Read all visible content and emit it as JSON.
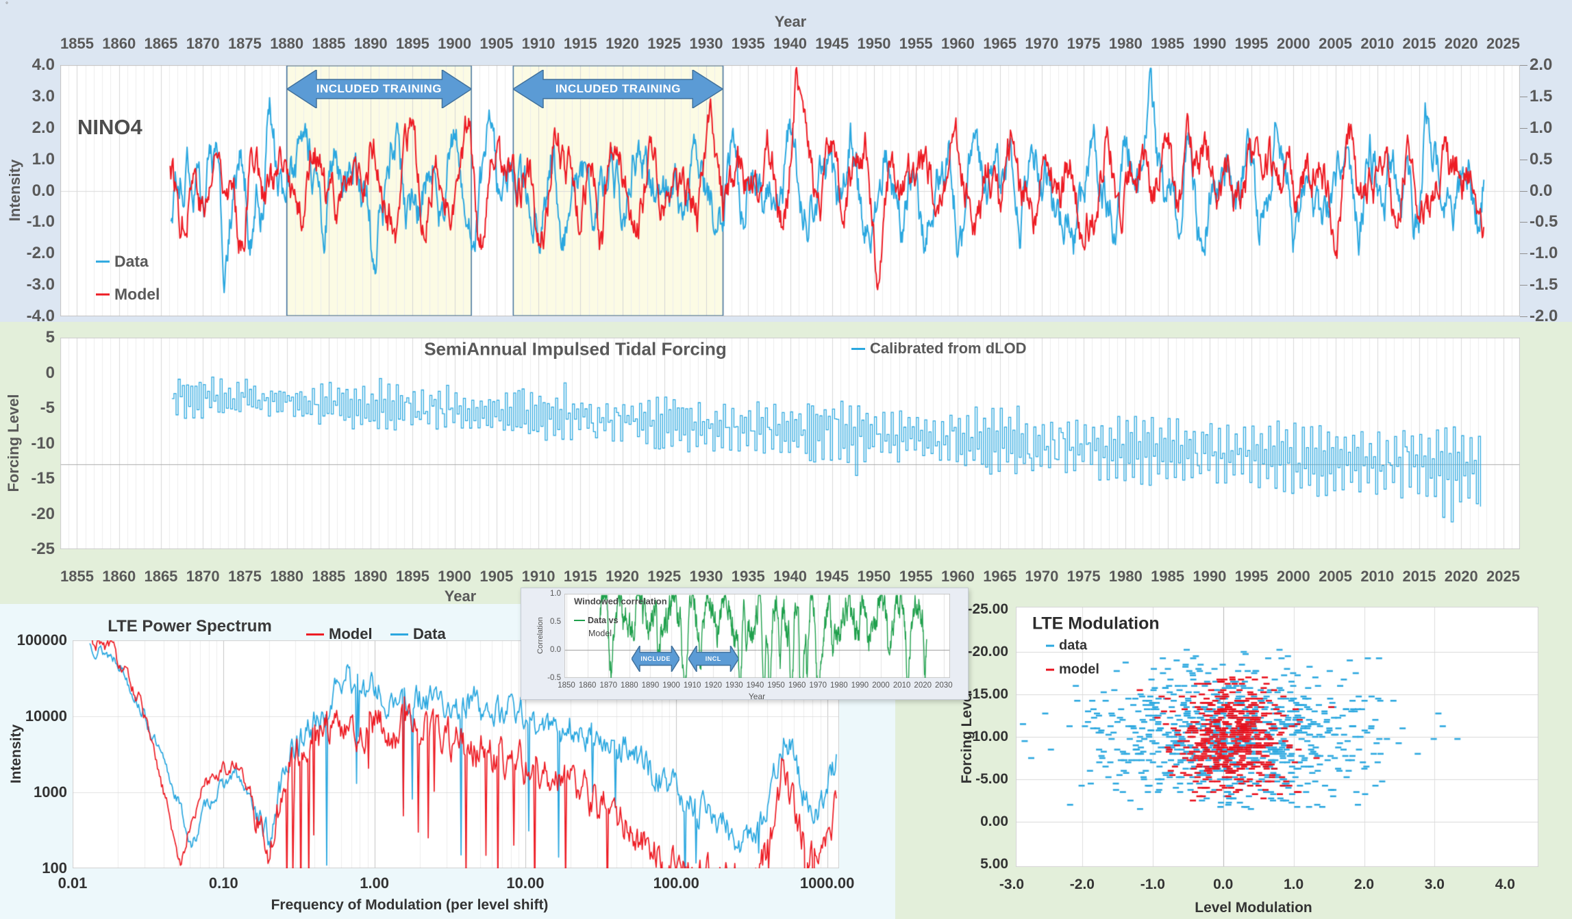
{
  "texts": {
    "corner_mark": "°"
  },
  "colors": {
    "data_blue": "#2AA7DF",
    "model_red": "#ED1C24",
    "corr_green": "#1FA04C",
    "banner_fill": "#5B9BD5",
    "banner_border": "#41719C",
    "training_fill": "#FCFBE4",
    "training_border": "#41719C",
    "panel_top_bg": "#DCE6F2",
    "panel_mid_bg": "#E3EFDA",
    "panel_spectrum_bg": "#EDF8FB",
    "panel_modulation_bg": "#E3EFDA",
    "inset_bg": "#E9EDF4",
    "axis_text": "#595959"
  },
  "chart_data": [
    {
      "id": "nino4",
      "type": "line",
      "panel_label": "NINO4",
      "x_axis": {
        "title": "Year",
        "position": "top",
        "range": [
          1853,
          2027
        ],
        "ticks": [
          1855,
          1860,
          1865,
          1870,
          1875,
          1880,
          1885,
          1890,
          1895,
          1900,
          1905,
          1910,
          1915,
          1920,
          1925,
          1930,
          1935,
          1940,
          1945,
          1950,
          1955,
          1960,
          1965,
          1970,
          1975,
          1980,
          1985,
          1990,
          1995,
          2000,
          2005,
          2010,
          2015,
          2020,
          2025
        ]
      },
      "y_axis_left": {
        "title": "Intensity",
        "range": [
          -4,
          4
        ],
        "tick_values": [
          4,
          3,
          2,
          1,
          0,
          -1,
          -2,
          -3,
          -4
        ],
        "tick_labels": [
          "4.0",
          "3.0",
          "2.0",
          "1.0",
          "0.0",
          "-1.0",
          "-2.0",
          "-3.0",
          "-4.0"
        ]
      },
      "y_axis_right": {
        "range": [
          -2,
          2
        ],
        "tick_values": [
          2,
          1.5,
          1,
          0.5,
          0,
          -0.5,
          -1,
          -1.5,
          -2
        ],
        "tick_labels": [
          "2.0",
          "1.5",
          "1.0",
          "0.5",
          "0.0",
          "-0.5",
          "-1.0",
          "-1.5",
          "-2.0"
        ]
      },
      "training_regions": [
        {
          "label": "INCLUDED TRAINING",
          "start_year": 1880,
          "end_year": 1902
        },
        {
          "label": "INCLUDED TRAINING",
          "start_year": 1907,
          "end_year": 1932
        }
      ],
      "series": [
        {
          "name": "Data",
          "color": "#2AA7DF",
          "axis": "left",
          "reconstruction": true,
          "seed": 20,
          "vol": 1.05,
          "start": 1866.2,
          "end": 2022.7,
          "events": [
            [
              1877.9,
              2.4,
              0.45
            ],
            [
              1983.0,
              2.5,
              0.4
            ],
            [
              2015.8,
              1.7,
              0.45
            ],
            [
              1997.9,
              1.5,
              0.4
            ],
            [
              1872.6,
              -1.7,
              0.4
            ],
            [
              1875.6,
              -2.1,
              0.35
            ],
            [
              1890.3,
              -1.4,
              0.4
            ],
            [
              1910.6,
              -1.5,
              0.5
            ],
            [
              1955.8,
              -1.4,
              0.5
            ],
            [
              1973.5,
              -1.5,
              0.5
            ],
            [
              1988.7,
              -1.3,
              0.4
            ],
            [
              1999.9,
              -1.2,
              0.5
            ]
          ]
        },
        {
          "name": "Model",
          "color": "#ED1C24",
          "axis": "right",
          "reconstruction": true,
          "seed": 77,
          "vol": 0.92,
          "start": 1866.1,
          "end": 2022.7,
          "events": [
            [
              1940.8,
              3.0,
              0.7
            ],
            [
              1987.2,
              2.9,
              0.45
            ],
            [
              1997.6,
              1.6,
              0.5
            ],
            [
              2019.4,
              1.5,
              0.45
            ],
            [
              1893.2,
              -1.2,
              0.5
            ],
            [
              1917.4,
              -1.1,
              0.5
            ],
            [
              1950.3,
              -1.4,
              0.5
            ],
            [
              1974.8,
              -1.1,
              0.5
            ],
            [
              2007.9,
              -0.9,
              0.4
            ]
          ]
        }
      ]
    },
    {
      "id": "tidal",
      "type": "step-line",
      "title": "SemiAnnual Impulsed Tidal Forcing",
      "x_axis": {
        "title": "Year",
        "position": "bottom",
        "range": [
          1853,
          2027
        ],
        "ticks": [
          1855,
          1860,
          1865,
          1870,
          1875,
          1880,
          1885,
          1890,
          1895,
          1900,
          1905,
          1910,
          1915,
          1920,
          1925,
          1930,
          1935,
          1940,
          1945,
          1950,
          1955,
          1960,
          1965,
          1970,
          1975,
          1980,
          1985,
          1990,
          1995,
          2000,
          2005,
          2010,
          2015,
          2020,
          2025
        ]
      },
      "y_axis": {
        "title": "Forcing Level",
        "range": [
          -25,
          5
        ],
        "tick_values": [
          5,
          0,
          -5,
          -10,
          -15,
          -20,
          -25
        ],
        "tick_labels": [
          "5",
          "0",
          "-5",
          "-10",
          "-15",
          "-20",
          "-25"
        ]
      },
      "reference_line": -13,
      "series": [
        {
          "name": "Calibrated from dLOD",
          "color": "#2AA7DF",
          "reconstruction": true,
          "seed": 5,
          "start": 1866.3,
          "end": 2022.5,
          "step": 0.25,
          "drift_start": -3.2,
          "drift_end": -13.6,
          "amp_start": 2.6,
          "amp_end": 5.4
        }
      ]
    },
    {
      "id": "windowed_correlation",
      "type": "line",
      "title": "Windowed correlation",
      "x_axis": {
        "title": "Year",
        "range": [
          1849,
          2033
        ],
        "ticks": [
          1850,
          1860,
          1870,
          1880,
          1890,
          1900,
          1910,
          1920,
          1930,
          1940,
          1950,
          1960,
          1970,
          1980,
          1990,
          2000,
          2010,
          2020,
          2030
        ]
      },
      "y_axis": {
        "title": "Correlation",
        "range": [
          -0.5,
          1.0
        ],
        "tick_values": [
          1.0,
          0.5,
          0.0,
          -0.5
        ],
        "tick_labels": [
          "1.0",
          "0.5",
          "0.0",
          "-0.5"
        ]
      },
      "banners": [
        {
          "label": "INCLUDE",
          "start_year": 1881,
          "end_year": 1904
        },
        {
          "label": "INCL",
          "start_year": 1908,
          "end_year": 1932
        }
      ],
      "series": [
        {
          "name": "Data vs Model",
          "legend_wrap": [
            "Data vs",
            "Model"
          ],
          "color": "#1FA04C",
          "reconstruction": true,
          "seed": 9,
          "start": 1866,
          "end": 2022,
          "dips": [
            [
              1871,
              0.7,
              0.8
            ],
            [
              1877,
              0.6,
              0.7
            ],
            [
              1894,
              0.85,
              0.8
            ],
            [
              1906.5,
              1.25,
              0.9
            ],
            [
              1914,
              0.5,
              0.6
            ],
            [
              1925,
              0.4,
              0.5
            ],
            [
              1933,
              1.35,
              0.8
            ],
            [
              1936,
              0.8,
              0.6
            ],
            [
              1944,
              1.2,
              0.7
            ],
            [
              1947,
              1.35,
              0.6
            ],
            [
              1952,
              0.9,
              0.6
            ],
            [
              1957.5,
              1.4,
              0.8
            ],
            [
              1962,
              1.5,
              0.7
            ],
            [
              1965,
              1.0,
              0.5
            ],
            [
              1970,
              1.45,
              0.8
            ],
            [
              1977,
              0.85,
              0.6
            ],
            [
              1994,
              0.6,
              0.5
            ],
            [
              2004,
              0.7,
              0.5
            ],
            [
              2013,
              0.95,
              0.7
            ],
            [
              2021,
              0.85,
              0.4
            ]
          ]
        }
      ]
    },
    {
      "id": "lte_power_spectrum",
      "type": "line",
      "title": "LTE Power Spectrum",
      "x_axis": {
        "title": "Frequency of Modulation (per level shift)",
        "scale": "log",
        "range": [
          0.01,
          1200
        ],
        "tick_values": [
          0.01,
          0.1,
          1,
          10,
          100,
          1000
        ],
        "tick_labels": [
          "0.01",
          "0.10",
          "1.00",
          "10.00",
          "100.00",
          "1000.00"
        ]
      },
      "y_axis": {
        "title": "Intensity",
        "scale": "log",
        "range": [
          100,
          100000
        ],
        "tick_values": [
          100000,
          10000,
          1000,
          100
        ],
        "tick_labels": [
          "100000",
          "10000",
          "1000",
          "100"
        ]
      },
      "series": [
        {
          "name": "Model",
          "color": "#ED1C24",
          "reconstruction": true,
          "seed": 31,
          "noise": 1.3,
          "rough": 0.7,
          "dip_p": 0.045,
          "anchors": [
            [
              0.013,
              4.98
            ],
            [
              0.018,
              4.9
            ],
            [
              0.028,
              4.2
            ],
            [
              0.045,
              2.6
            ],
            [
              0.052,
              2.0
            ],
            [
              0.06,
              2.6
            ],
            [
              0.075,
              3.1
            ],
            [
              0.1,
              3.35
            ],
            [
              0.13,
              3.3
            ],
            [
              0.17,
              2.7
            ],
            [
              0.2,
              2.25
            ],
            [
              0.24,
              3.0
            ],
            [
              0.3,
              3.55
            ],
            [
              0.4,
              3.75
            ],
            [
              0.55,
              3.95
            ],
            [
              0.7,
              3.75
            ],
            [
              0.9,
              3.95
            ],
            [
              1.2,
              3.8
            ],
            [
              1.7,
              3.9
            ],
            [
              2.5,
              3.75
            ],
            [
              3.5,
              3.6
            ],
            [
              5,
              3.5
            ],
            [
              7,
              3.45
            ],
            [
              10,
              3.3
            ],
            [
              15,
              3.15
            ],
            [
              22,
              3.0
            ],
            [
              32,
              2.8
            ],
            [
              48,
              2.5
            ],
            [
              70,
              2.2
            ],
            [
              100,
              2.0
            ],
            [
              150,
              1.85
            ],
            [
              220,
              1.9
            ],
            [
              320,
              1.8
            ],
            [
              420,
              2.3
            ],
            [
              500,
              3.25
            ],
            [
              560,
              3.0
            ],
            [
              650,
              2.6
            ],
            [
              750,
              2.1
            ],
            [
              850,
              2.2
            ],
            [
              1000,
              2.5
            ],
            [
              1150,
              2.9
            ]
          ]
        },
        {
          "name": "Data",
          "color": "#2AA7DF",
          "reconstruction": true,
          "seed": 13,
          "noise": 1.2,
          "rough": 0.6,
          "dip_p": 0.02,
          "anchors": [
            [
              0.013,
              4.95
            ],
            [
              0.02,
              4.75
            ],
            [
              0.03,
              4.0
            ],
            [
              0.05,
              2.9
            ],
            [
              0.062,
              2.25
            ],
            [
              0.075,
              2.8
            ],
            [
              0.095,
              3.05
            ],
            [
              0.12,
              3.25
            ],
            [
              0.16,
              2.8
            ],
            [
              0.2,
              2.35
            ],
            [
              0.25,
              3.3
            ],
            [
              0.35,
              3.8
            ],
            [
              0.5,
              4.1
            ],
            [
              0.65,
              4.55
            ],
            [
              0.8,
              4.3
            ],
            [
              1.0,
              4.35
            ],
            [
              1.4,
              4.2
            ],
            [
              2,
              4.25
            ],
            [
              3,
              4.1
            ],
            [
              4.5,
              4.2
            ],
            [
              6,
              4.0
            ],
            [
              8,
              4.1
            ],
            [
              11,
              3.95
            ],
            [
              16,
              3.85
            ],
            [
              22,
              3.9
            ],
            [
              30,
              3.7
            ],
            [
              45,
              3.55
            ],
            [
              60,
              3.4
            ],
            [
              80,
              3.2
            ],
            [
              110,
              2.9
            ],
            [
              150,
              2.75
            ],
            [
              200,
              2.6
            ],
            [
              260,
              2.35
            ],
            [
              330,
              2.5
            ],
            [
              420,
              2.9
            ],
            [
              520,
              3.8
            ],
            [
              600,
              3.5
            ],
            [
              700,
              3.0
            ],
            [
              800,
              2.6
            ],
            [
              900,
              2.8
            ],
            [
              1000,
              3.1
            ],
            [
              1150,
              3.4
            ]
          ]
        }
      ]
    },
    {
      "id": "lte_modulation",
      "type": "scatter",
      "title": "LTE Modulation",
      "x_axis": {
        "title": "Level Modulation",
        "range": [
          -3.06,
          4.41
        ],
        "tick_values": [
          -3,
          -2,
          -1,
          0,
          1,
          2,
          3,
          4
        ],
        "tick_labels": [
          "-3.0",
          "-2.0",
          "-1.0",
          "0.0",
          "1.0",
          "2.0",
          "3.0",
          "4.0"
        ]
      },
      "y_axis": {
        "title": "Forcing Level",
        "range": [
          -25,
          5
        ],
        "inverted": true,
        "tick_values": [
          -25,
          -20,
          -15,
          -10,
          -5,
          0,
          5
        ],
        "tick_labels": [
          "-25.00",
          "-20.00",
          "-15.00",
          "-10.00",
          "-5.00",
          "0.00",
          "5.00"
        ]
      },
      "series": [
        {
          "name": "data",
          "color": "#2AA7DF",
          "reconstruction": true,
          "seed": 3,
          "n": 880,
          "x_mean": 0.2,
          "x_sd": 1.05,
          "x_range": [
            -2.9,
            3.9
          ],
          "y_mean": -10,
          "y_sd": 4.2,
          "y_range": [
            -20.5,
            -1.5
          ],
          "y_step": 0.25
        },
        {
          "name": "model",
          "color": "#E8101C",
          "reconstruction": true,
          "seed": 8,
          "n": 520,
          "x_mean": 0.15,
          "x_sd": 0.42,
          "x_range": [
            -1.4,
            2.1
          ],
          "y_mean": -10,
          "y_sd": 3.4,
          "y_range": [
            -17.5,
            -2.2
          ],
          "y_step": 0.25
        }
      ]
    }
  ]
}
